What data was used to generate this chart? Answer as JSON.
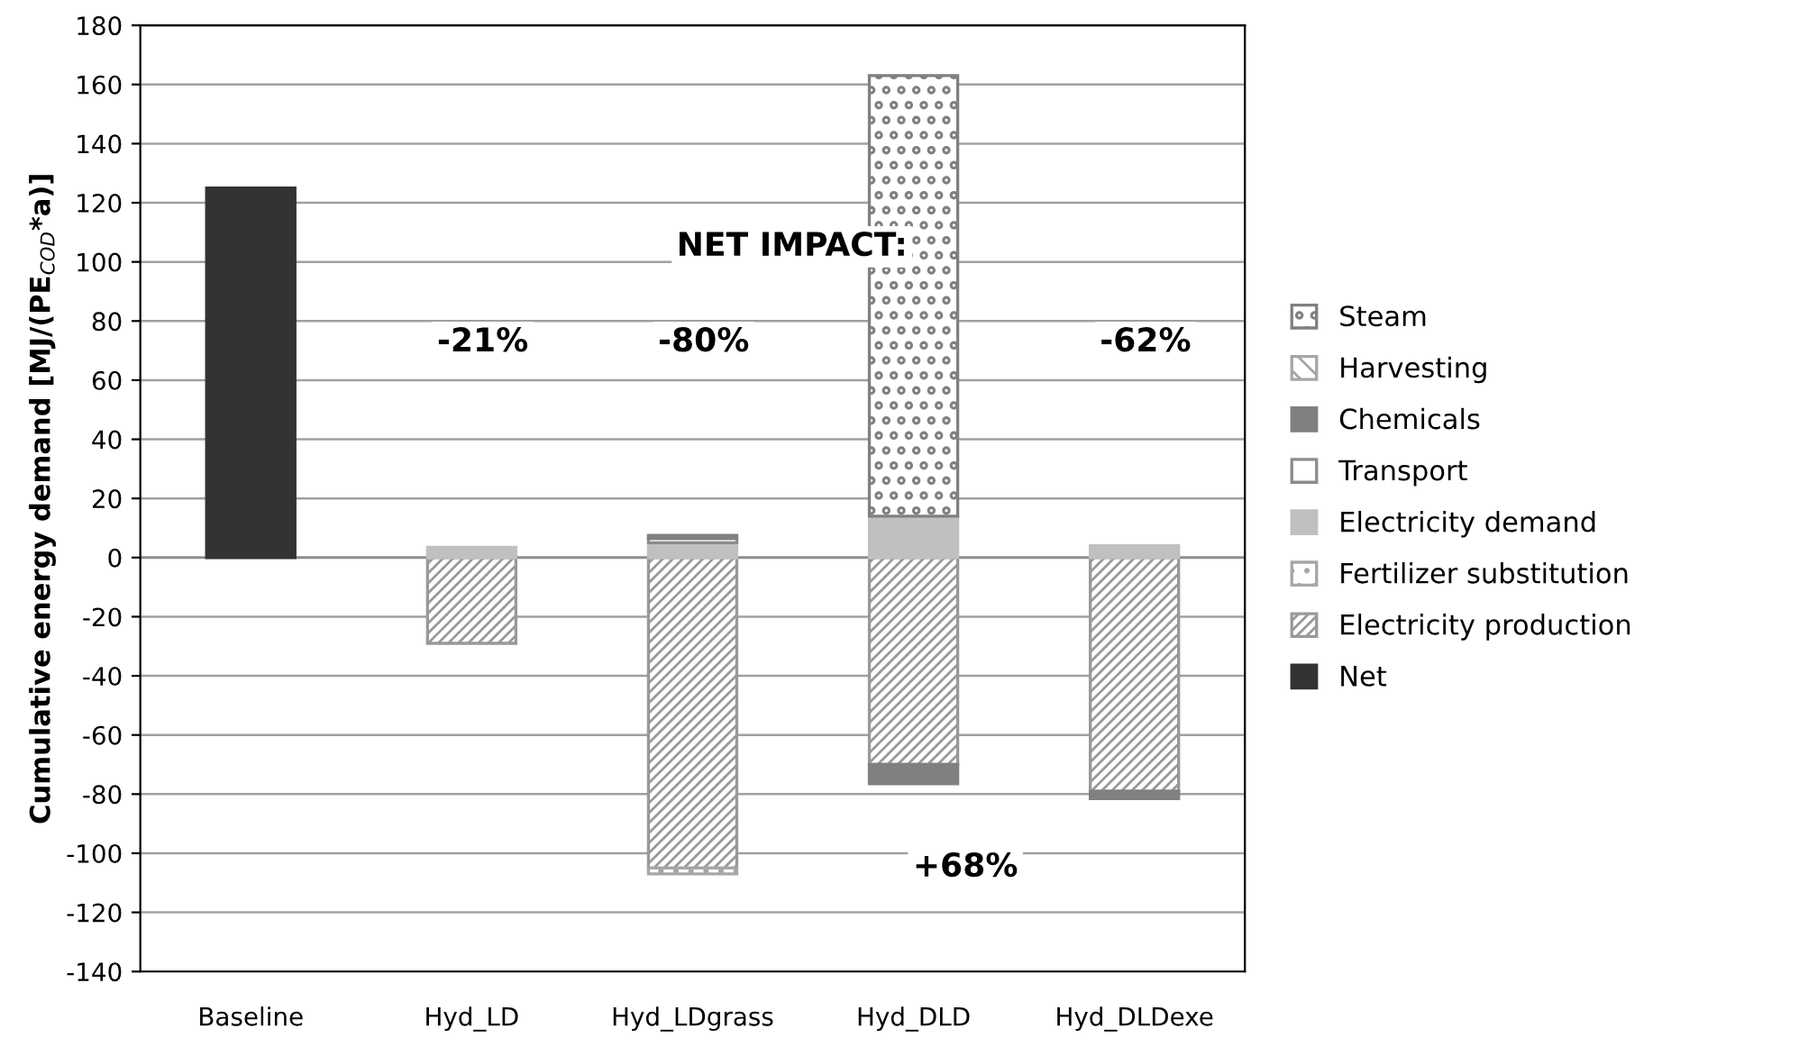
{
  "chart_data": {
    "type": "bar",
    "stacked": true,
    "ylabel": "Cumulative energy demand [MJ/(PE$_{COD}$*a)]",
    "categories": [
      "Baseline",
      "Hyd_LD",
      "Hyd_LDgrass",
      "Hyd_DLD",
      "Hyd_DLDexe"
    ],
    "series": [
      {
        "name": "Net",
        "color": "#333333",
        "values": [
          125,
          null,
          null,
          null,
          null
        ]
      },
      {
        "name": "Electricity production",
        "color": "#999999",
        "values": [
          null,
          -29,
          -105,
          -70,
          -79
        ]
      },
      {
        "name": "Fertilizer substitution",
        "color": "#a6a6a6",
        "values": [
          null,
          null,
          -2,
          null,
          null
        ]
      },
      {
        "name": "Electricity demand",
        "color": "#c0c0c0",
        "values": [
          null,
          3.5,
          5,
          14,
          4
        ]
      },
      {
        "name": "Transport",
        "color": "#8c8c8c",
        "values": [
          null,
          null,
          1.5,
          null,
          null
        ]
      },
      {
        "name": "Chemicals",
        "color": "#808080",
        "values": [
          null,
          null,
          1,
          -6.5,
          -2.5
        ]
      },
      {
        "name": "Harvesting",
        "color": "#a6a6a6",
        "values": [
          null,
          null,
          null,
          null,
          null
        ]
      },
      {
        "name": "Steam",
        "color": "#808080",
        "values": [
          null,
          null,
          null,
          149,
          null
        ]
      }
    ],
    "ylim": [
      -140,
      180
    ],
    "yticks": [
      -140,
      -120,
      -100,
      -80,
      -60,
      -40,
      -20,
      0,
      20,
      40,
      60,
      80,
      100,
      120,
      140,
      160,
      180
    ],
    "grid": "y",
    "legend": "right",
    "annotations": [
      "NET IMPACT:",
      "-21%",
      "-80%",
      "+68%",
      "-62%"
    ]
  }
}
